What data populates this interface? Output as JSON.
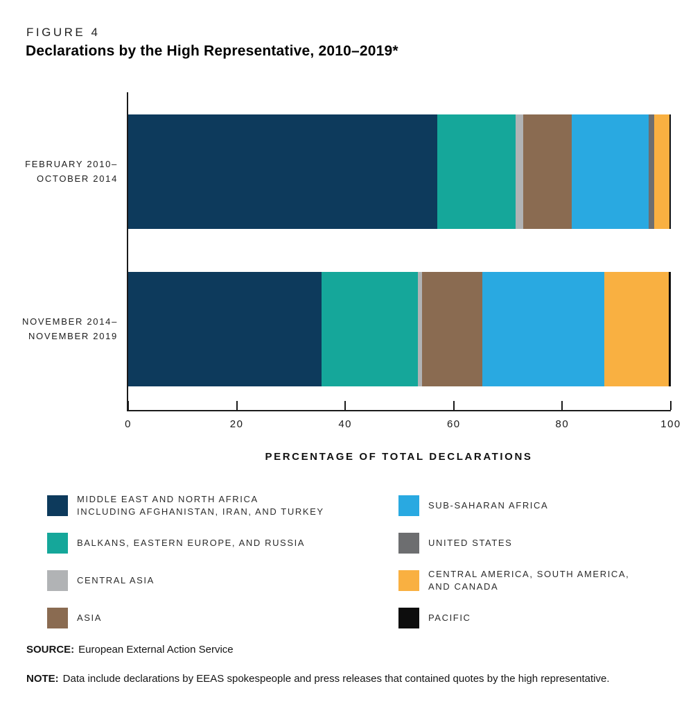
{
  "chart_data": {
    "type": "bar",
    "variant": "horizontal-stacked",
    "figure_label": "FIGURE 4",
    "title": "Declarations by the High Representative, 2010–2019*",
    "categories": [
      "FEBRUARY 2010–\nOCTOBER 2014",
      "NOVEMBER 2014–\nNOVEMBER 2019"
    ],
    "series": [
      {
        "key": "middle-east-north-africa",
        "name": "Middle East and North Africa including Afghanistan, Iran, and Turkey",
        "color": "#0d3a5c",
        "values": [
          57.0,
          35.6
        ]
      },
      {
        "key": "balkans-eastern-europe-russia",
        "name": "Balkans, Eastern Europe, and Russia",
        "color": "#15a79a",
        "values": [
          14.4,
          17.8
        ]
      },
      {
        "key": "central-asia",
        "name": "Central Asia",
        "color": "#b1b3b5",
        "values": [
          1.4,
          0.8
        ]
      },
      {
        "key": "asia",
        "name": "Asia",
        "color": "#8a6b51",
        "values": [
          9.0,
          11.1
        ]
      },
      {
        "key": "sub-saharan-africa",
        "name": "Sub-Saharan Africa",
        "color": "#29a9e1",
        "values": [
          14.1,
          22.4
        ]
      },
      {
        "key": "united-states",
        "name": "United States",
        "color": "#6d6e70",
        "values": [
          1.1,
          0.0
        ]
      },
      {
        "key": "central-america-south-america-canada",
        "name": "Central America, South America, and Canada",
        "color": "#f9b041",
        "values": [
          2.7,
          11.9
        ]
      },
      {
        "key": "pacific",
        "name": "Pacific",
        "color": "#0d0d0d",
        "values": [
          0.3,
          0.4
        ]
      }
    ],
    "xlabel": "PERCENTAGE OF TOTAL DECLARATIONS",
    "xticks": [
      0,
      20,
      40,
      60,
      80,
      100
    ],
    "xlim": [
      0,
      100
    ],
    "grid": false,
    "legend_position": "bottom"
  },
  "legend": {
    "items": [
      {
        "label": "MIDDLE EAST AND NORTH AFRICA\nINCLUDING AFGHANISTAN, IRAN, AND TURKEY",
        "color": "#0d3a5c"
      },
      {
        "label": "BALKANS, EASTERN EUROPE, AND RUSSIA",
        "color": "#15a79a"
      },
      {
        "label": "CENTRAL ASIA",
        "color": "#b1b3b5"
      },
      {
        "label": "ASIA",
        "color": "#8a6b51"
      },
      {
        "label": "SUB-SAHARAN AFRICA",
        "color": "#29a9e1"
      },
      {
        "label": "UNITED STATES",
        "color": "#6d6e70"
      },
      {
        "label": "CENTRAL AMERICA, SOUTH AMERICA,\nAND CANADA",
        "color": "#f9b041"
      },
      {
        "label": "PACIFIC",
        "color": "#0d0d0d"
      }
    ]
  },
  "footer": {
    "source_label": "SOURCE:",
    "source_text": "European External Action Service",
    "note_label": "NOTE:",
    "note_text": "Data include declarations by EEAS spokespeople and press releases that contained quotes by the high representative."
  }
}
